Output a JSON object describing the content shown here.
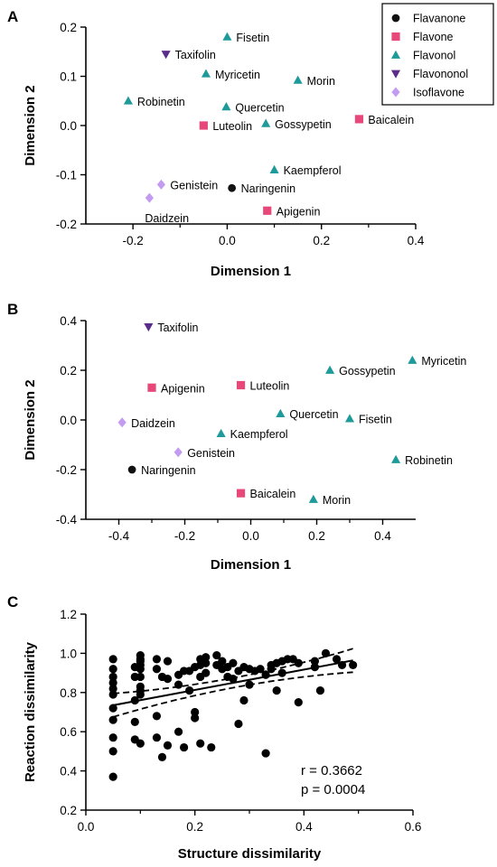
{
  "chart_data": [
    {
      "panel": "A",
      "type": "scatter",
      "xlabel": "Dimension 1",
      "ylabel": "Dimension 2",
      "xlim": [
        -0.3,
        0.4
      ],
      "ylim": [
        -0.2,
        0.2
      ],
      "xticks": [
        "-0.2",
        "0.0",
        "0.2",
        "0.4"
      ],
      "xtick_values": [
        -0.2,
        0.0,
        0.2,
        0.4
      ],
      "yticks": [
        "0.2",
        "0.1",
        "0.0",
        "-0.1",
        "-0.2"
      ],
      "ytick_values": [
        0.2,
        0.1,
        0.0,
        -0.1,
        -0.2
      ],
      "legend_position": "top-right",
      "legend": [
        {
          "name": "Flavanone",
          "shape": "circle",
          "color": "#111111"
        },
        {
          "name": "Flavone",
          "shape": "square",
          "color": "#e8477a"
        },
        {
          "name": "Flavonol",
          "shape": "triangle-up",
          "color": "#1f9a9a"
        },
        {
          "name": "Flavononol",
          "shape": "triangle-down",
          "color": "#5b2d8a"
        },
        {
          "name": "Isoflavone",
          "shape": "diamond",
          "color": "#c39bf0"
        }
      ],
      "points": [
        {
          "label": "Fisetin",
          "group": "Flavonol",
          "x": 0.0,
          "y": 0.18,
          "pos": "right"
        },
        {
          "label": "Taxifolin",
          "group": "Flavononol",
          "x": -0.13,
          "y": 0.145,
          "pos": "right"
        },
        {
          "label": "Myricetin",
          "group": "Flavonol",
          "x": -0.045,
          "y": 0.105,
          "pos": "right"
        },
        {
          "label": "Morin",
          "group": "Flavonol",
          "x": 0.15,
          "y": 0.092,
          "pos": "right"
        },
        {
          "label": "Robinetin",
          "group": "Flavonol",
          "x": -0.21,
          "y": 0.05,
          "pos": "right"
        },
        {
          "label": "Quercetin",
          "group": "Flavonol",
          "x": -0.002,
          "y": 0.038,
          "pos": "right"
        },
        {
          "label": "Luteolin",
          "group": "Flavone",
          "x": -0.05,
          "y": 0.0,
          "pos": "right"
        },
        {
          "label": "Gossypetin",
          "group": "Flavonol",
          "x": 0.082,
          "y": 0.004,
          "pos": "right"
        },
        {
          "label": "Baicalein",
          "group": "Flavone",
          "x": 0.28,
          "y": 0.013,
          "pos": "right"
        },
        {
          "label": "Kaempferol",
          "group": "Flavonol",
          "x": 0.1,
          "y": -0.09,
          "pos": "right"
        },
        {
          "label": "Genistein",
          "group": "Isoflavone",
          "x": -0.14,
          "y": -0.12,
          "pos": "right"
        },
        {
          "label": "Naringenin",
          "group": "Flavanone",
          "x": 0.01,
          "y": -0.127,
          "pos": "right"
        },
        {
          "label": "Daidzein",
          "group": "Isoflavone",
          "x": -0.165,
          "y": -0.147,
          "pos": "below"
        },
        {
          "label": "Apigenin",
          "group": "Flavone",
          "x": 0.085,
          "y": -0.173,
          "pos": "right"
        }
      ]
    },
    {
      "panel": "B",
      "type": "scatter",
      "xlabel": "Dimension 1",
      "ylabel": "Dimension 2",
      "xlim": [
        -0.5,
        0.5
      ],
      "ylim": [
        -0.4,
        0.4
      ],
      "xticks": [
        "-0.4",
        "-0.2",
        "0.0",
        "0.2",
        "0.4"
      ],
      "xtick_values": [
        -0.4,
        -0.2,
        0.0,
        0.2,
        0.4
      ],
      "yticks": [
        "0.4",
        "0.2",
        "0.0",
        "-0.2",
        "-0.4"
      ],
      "ytick_values": [
        0.4,
        0.2,
        0.0,
        -0.2,
        -0.4
      ],
      "points": [
        {
          "label": "Taxifolin",
          "group": "Flavononol",
          "x": -0.31,
          "y": 0.375,
          "pos": "right"
        },
        {
          "label": "Myricetin",
          "group": "Flavonol",
          "x": 0.49,
          "y": 0.24,
          "pos": "right"
        },
        {
          "label": "Gossypetin",
          "group": "Flavonol",
          "x": 0.24,
          "y": 0.2,
          "pos": "right"
        },
        {
          "label": "Luteolin",
          "group": "Flavone",
          "x": -0.03,
          "y": 0.14,
          "pos": "right"
        },
        {
          "label": "Apigenin",
          "group": "Flavone",
          "x": -0.3,
          "y": 0.13,
          "pos": "right"
        },
        {
          "label": "Quercetin",
          "group": "Flavonol",
          "x": 0.09,
          "y": 0.025,
          "pos": "right"
        },
        {
          "label": "Fisetin",
          "group": "Flavonol",
          "x": 0.3,
          "y": 0.005,
          "pos": "right"
        },
        {
          "label": "Daidzein",
          "group": "Isoflavone",
          "x": -0.39,
          "y": -0.01,
          "pos": "right"
        },
        {
          "label": "Kaempferol",
          "group": "Flavonol",
          "x": -0.09,
          "y": -0.055,
          "pos": "right"
        },
        {
          "label": "Genistein",
          "group": "Isoflavone",
          "x": -0.22,
          "y": -0.13,
          "pos": "right"
        },
        {
          "label": "Robinetin",
          "group": "Flavonol",
          "x": 0.44,
          "y": -0.16,
          "pos": "right"
        },
        {
          "label": "Naringenin",
          "group": "Flavanone",
          "x": -0.36,
          "y": -0.2,
          "pos": "right"
        },
        {
          "label": "Baicalein",
          "group": "Flavone",
          "x": -0.03,
          "y": -0.295,
          "pos": "right"
        },
        {
          "label": "Morin",
          "group": "Flavonol",
          "x": 0.19,
          "y": -0.32,
          "pos": "right"
        }
      ]
    },
    {
      "panel": "C",
      "type": "scatter",
      "xlabel": "Structure dissimilarity",
      "ylabel": "Reaction dissimilarity",
      "xlim": [
        0.0,
        0.6
      ],
      "ylim": [
        0.2,
        1.2
      ],
      "xticks": [
        "0.0",
        "0.2",
        "0.4",
        "0.6"
      ],
      "xtick_values": [
        0.0,
        0.2,
        0.4,
        0.6
      ],
      "yticks": [
        "1.2",
        "1.0",
        "0.8",
        "0.6",
        "0.4",
        "0.2"
      ],
      "ytick_values": [
        1.2,
        1.0,
        0.8,
        0.6,
        0.4,
        0.2
      ],
      "regression": {
        "intercept": 0.735,
        "slope": 0.52,
        "x_range": [
          0.05,
          0.49
        ],
        "ci_half_width_ends": 0.06,
        "ci_half_width_mid": 0.025
      },
      "annotations": [
        "r = 0.3662",
        "p = 0.0004"
      ],
      "points": [
        [
          0.05,
          0.97
        ],
        [
          0.05,
          0.92
        ],
        [
          0.05,
          0.88
        ],
        [
          0.05,
          0.85
        ],
        [
          0.05,
          0.82
        ],
        [
          0.05,
          0.79
        ],
        [
          0.05,
          0.72
        ],
        [
          0.05,
          0.66
        ],
        [
          0.05,
          0.57
        ],
        [
          0.05,
          0.5
        ],
        [
          0.05,
          0.37
        ],
        [
          0.09,
          0.93
        ],
        [
          0.09,
          0.88
        ],
        [
          0.09,
          0.76
        ],
        [
          0.09,
          0.65
        ],
        [
          0.09,
          0.56
        ],
        [
          0.1,
          0.99
        ],
        [
          0.1,
          0.97
        ],
        [
          0.1,
          0.96
        ],
        [
          0.1,
          0.94
        ],
        [
          0.1,
          0.92
        ],
        [
          0.1,
          0.88
        ],
        [
          0.1,
          0.83
        ],
        [
          0.1,
          0.81
        ],
        [
          0.1,
          0.79
        ],
        [
          0.1,
          0.54
        ],
        [
          0.13,
          0.97
        ],
        [
          0.13,
          0.92
        ],
        [
          0.13,
          0.68
        ],
        [
          0.13,
          0.57
        ],
        [
          0.14,
          0.88
        ],
        [
          0.14,
          0.47
        ],
        [
          0.15,
          0.87
        ],
        [
          0.15,
          0.96
        ],
        [
          0.15,
          0.53
        ],
        [
          0.17,
          0.84
        ],
        [
          0.17,
          0.89
        ],
        [
          0.17,
          0.6
        ],
        [
          0.18,
          0.91
        ],
        [
          0.18,
          0.52
        ],
        [
          0.19,
          0.81
        ],
        [
          0.19,
          0.91
        ],
        [
          0.2,
          0.93
        ],
        [
          0.2,
          0.7
        ],
        [
          0.2,
          0.67
        ],
        [
          0.21,
          0.97
        ],
        [
          0.21,
          0.94
        ],
        [
          0.21,
          0.88
        ],
        [
          0.21,
          0.54
        ],
        [
          0.22,
          0.98
        ],
        [
          0.22,
          0.95
        ],
        [
          0.22,
          0.9
        ],
        [
          0.23,
          0.52
        ],
        [
          0.24,
          0.99
        ],
        [
          0.24,
          0.94
        ],
        [
          0.25,
          0.96
        ],
        [
          0.25,
          0.92
        ],
        [
          0.26,
          0.88
        ],
        [
          0.26,
          0.93
        ],
        [
          0.27,
          0.95
        ],
        [
          0.27,
          0.87
        ],
        [
          0.28,
          0.91
        ],
        [
          0.28,
          0.64
        ],
        [
          0.29,
          0.93
        ],
        [
          0.29,
          0.76
        ],
        [
          0.3,
          0.92
        ],
        [
          0.3,
          0.84
        ],
        [
          0.31,
          0.91
        ],
        [
          0.32,
          0.92
        ],
        [
          0.33,
          0.89
        ],
        [
          0.33,
          0.49
        ],
        [
          0.34,
          0.94
        ],
        [
          0.34,
          0.92
        ],
        [
          0.35,
          0.95
        ],
        [
          0.35,
          0.81
        ],
        [
          0.36,
          0.96
        ],
        [
          0.36,
          0.9
        ],
        [
          0.37,
          0.97
        ],
        [
          0.38,
          0.97
        ],
        [
          0.39,
          0.95
        ],
        [
          0.39,
          0.75
        ],
        [
          0.42,
          0.96
        ],
        [
          0.42,
          0.93
        ],
        [
          0.43,
          0.81
        ],
        [
          0.44,
          1.0
        ],
        [
          0.46,
          0.97
        ],
        [
          0.47,
          0.94
        ],
        [
          0.49,
          0.94
        ]
      ]
    }
  ]
}
